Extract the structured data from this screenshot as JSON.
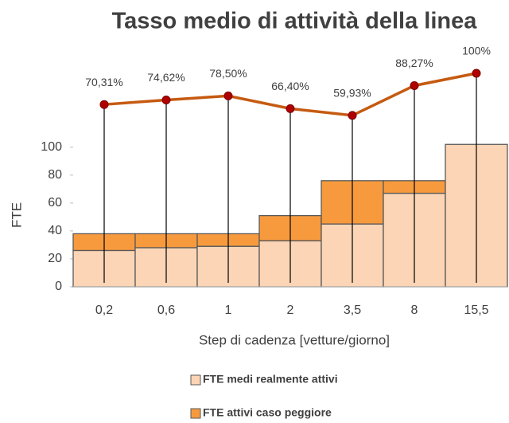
{
  "chart_data": {
    "type": "bar",
    "title": "Tasso medio di attività della linea",
    "x_label": "Step di cadenza [vetture/giorno]",
    "y_label": "FTE",
    "categories": [
      "0,2",
      "0,6",
      "1",
      "2",
      "3,5",
      "8",
      "15,5"
    ],
    "series": [
      {
        "name": "FTE medi realmente attivi",
        "color": "#fbd5b5",
        "values": [
          26,
          28,
          29,
          33,
          45,
          67,
          102
        ]
      },
      {
        "name": "FTE attivi caso peggiore",
        "color": "#f79a3e",
        "values": [
          12,
          10,
          9,
          18,
          31,
          9,
          0
        ]
      },
      {
        "type": "line",
        "axis": "y2",
        "color": "#c55a11",
        "marker_color": "#b00000",
        "values": [
          70.31,
          74.62,
          78.5,
          66.4,
          59.93,
          88.27,
          100
        ],
        "value_labels": [
          "70,31%",
          "74,62%",
          "78,50%",
          "66,40%",
          "59,93%",
          "88,27%",
          "100%"
        ]
      }
    ],
    "ylim": [
      0,
      105
    ],
    "yticks": [
      0,
      20,
      40,
      60,
      80,
      100
    ],
    "y2lim": [
      0,
      100
    ],
    "stacked": true,
    "grid": false,
    "legend": "bottom"
  }
}
